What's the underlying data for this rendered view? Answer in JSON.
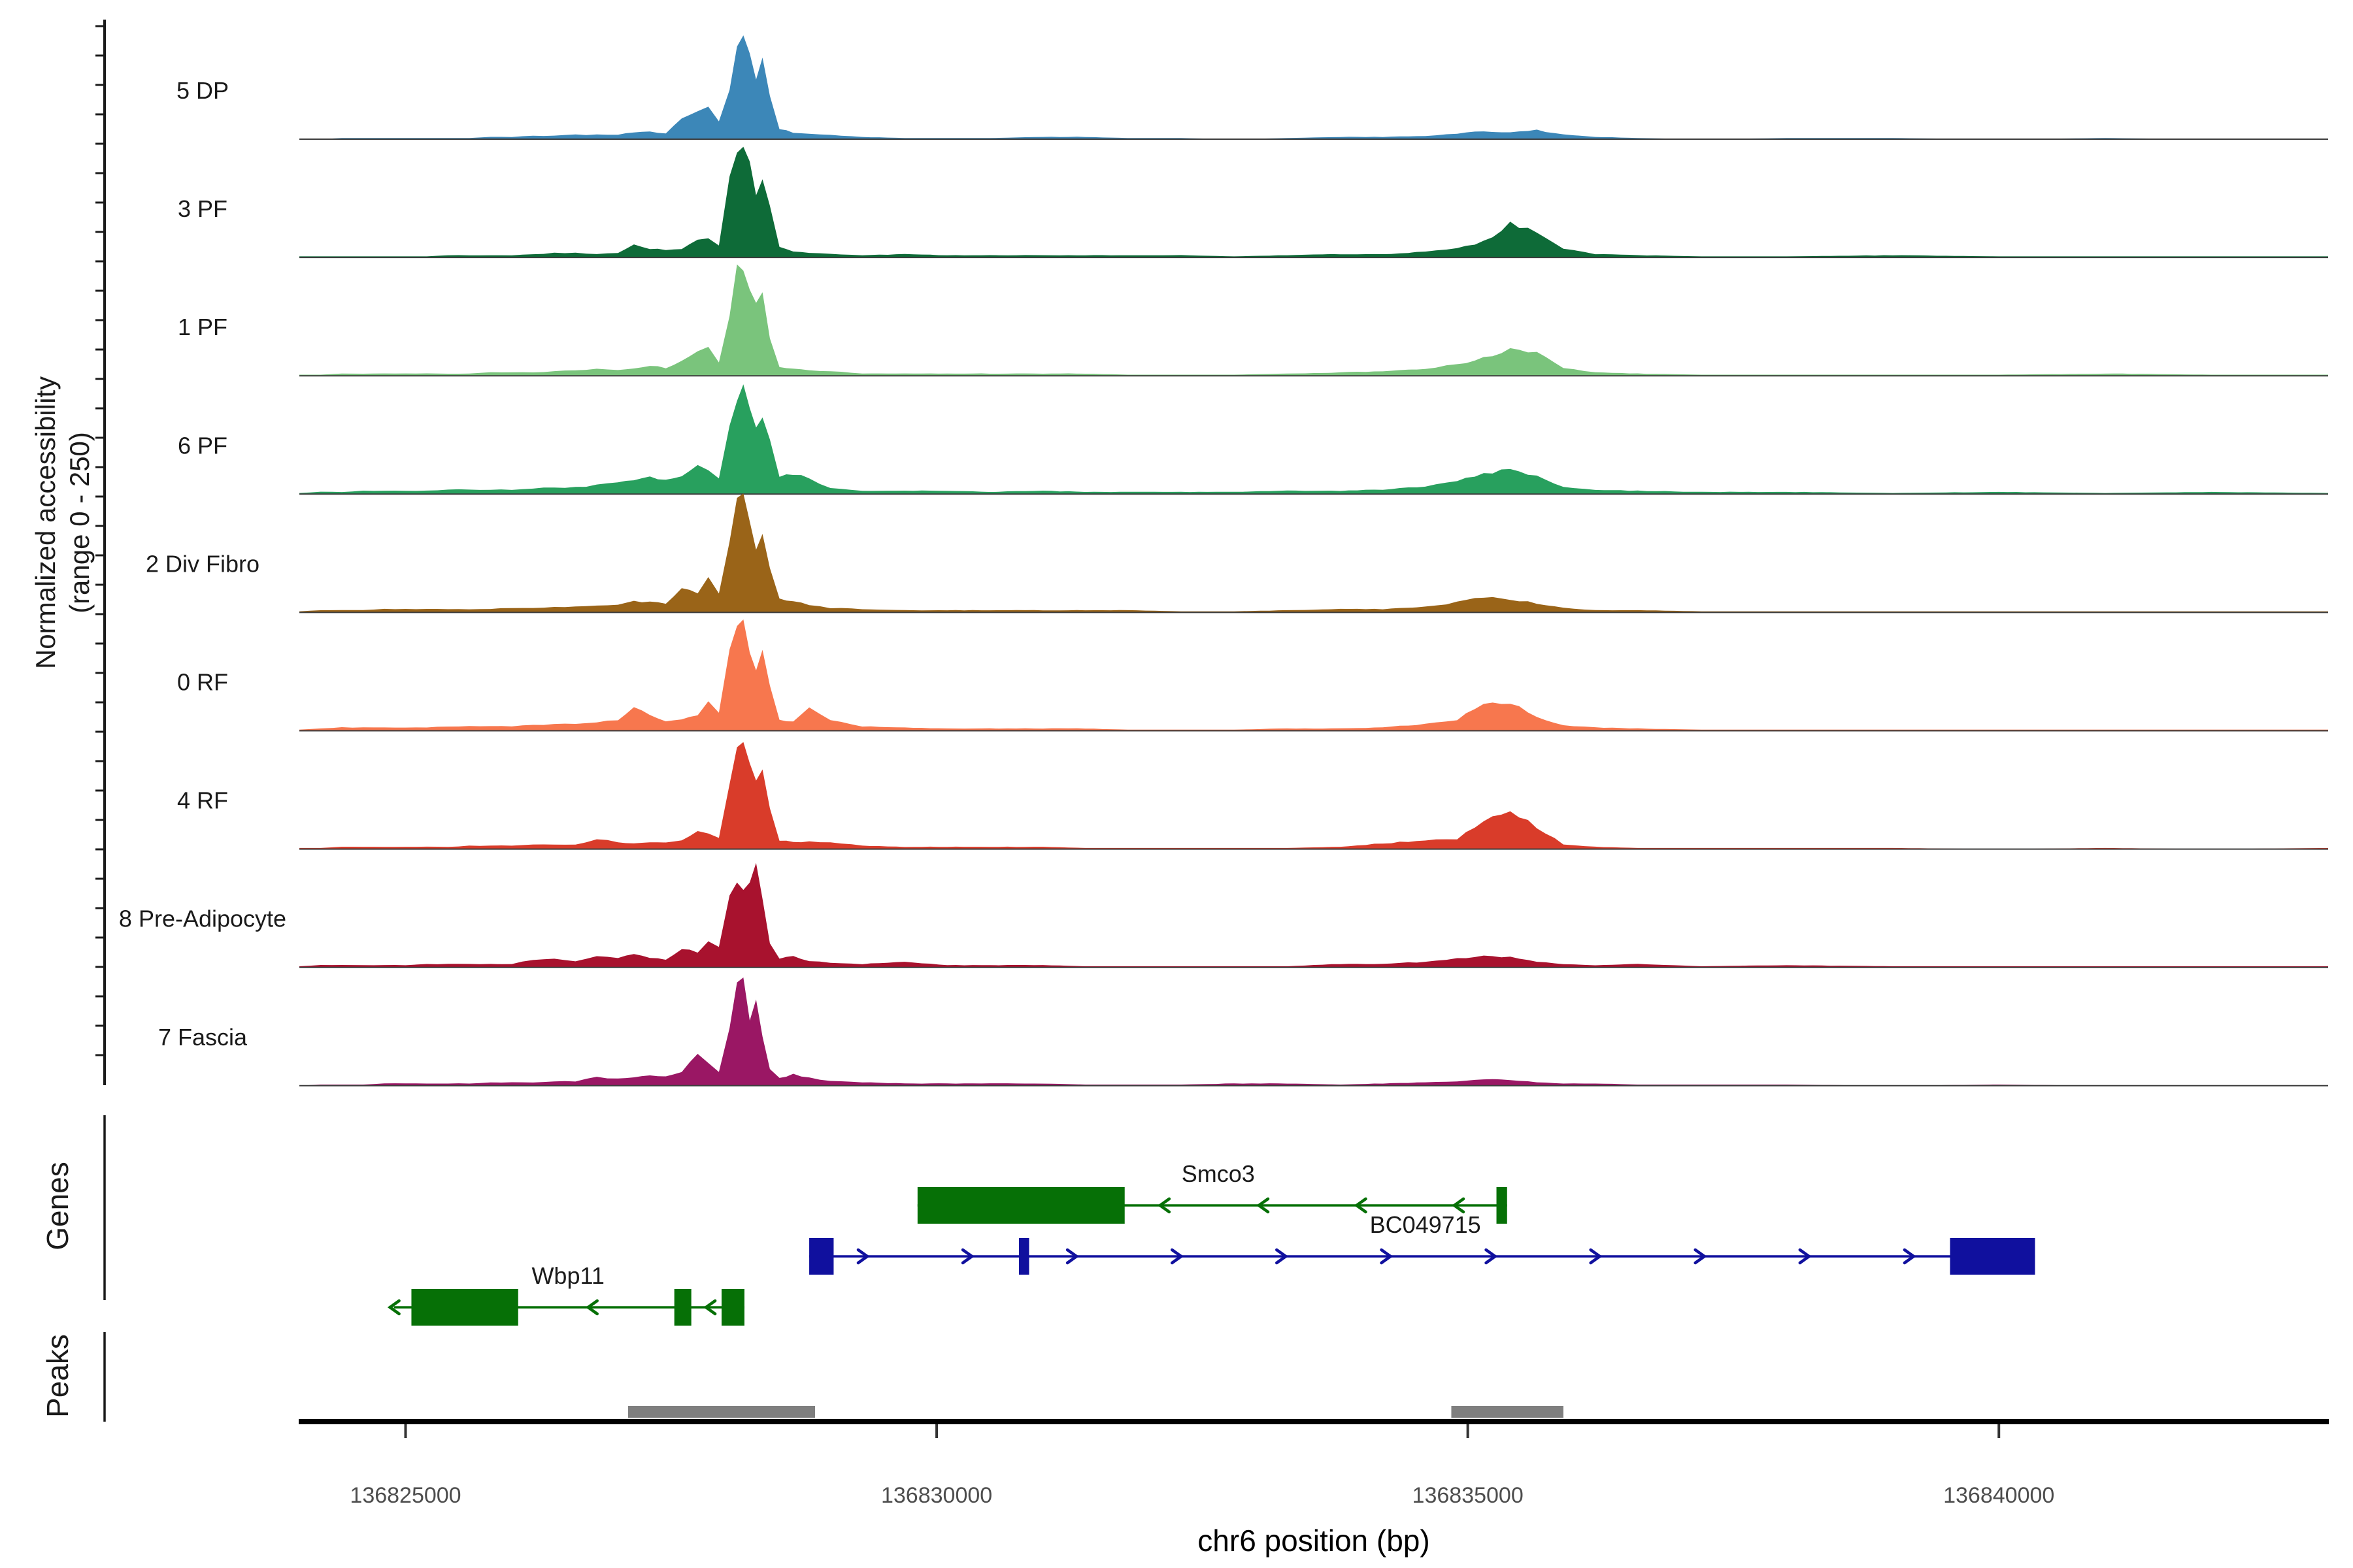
{
  "figure": {
    "y_axis_label_line1": "Normalized accessibility",
    "y_axis_label_line2": "(range 0 - 250)",
    "genes_section_label": "Genes",
    "peaks_section_label": "Peaks",
    "x_axis_title": "chr6 position (bp)"
  },
  "chart_data": {
    "type": "area",
    "title": "",
    "xlabel": "chr6 position (bp)",
    "ylabel": "Normalized accessibility (range 0 - 250)",
    "chromosome": "chr6",
    "x_domain_bp": [
      136824000,
      136843100
    ],
    "y_range_per_track": [
      0,
      250
    ],
    "grid_on": false,
    "x_ticks": [
      {
        "bp": 136825000,
        "label": "136825000"
      },
      {
        "bp": 136830000,
        "label": "136830000"
      },
      {
        "bp": 136835000,
        "label": "136835000"
      },
      {
        "bp": 136840000,
        "label": "136840000"
      }
    ],
    "x_offsets_bp": [
      0,
      200,
      400,
      600,
      800,
      1000,
      1200,
      1400,
      1600,
      1800,
      2000,
      2200,
      2400,
      2600,
      2800,
      3000,
      3150,
      3300,
      3450,
      3600,
      3750,
      3850,
      3950,
      4050,
      4120,
      4180,
      4240,
      4300,
      4360,
      4430,
      4520,
      4650,
      4800,
      5000,
      5300,
      5700,
      6100,
      6500,
      7000,
      7400,
      7800,
      8300,
      8800,
      9300,
      9800,
      10200,
      10600,
      10900,
      11150,
      11400,
      11650,
      11900,
      12200,
      12600,
      13200,
      14000,
      15000,
      16000,
      17000,
      18000,
      19100
    ],
    "tracks": [
      {
        "label": "5 DP",
        "color": "#3C87B8",
        "values_pct": [
          0,
          0,
          1,
          1,
          1,
          1,
          1,
          1,
          1,
          2,
          2,
          3,
          3,
          4,
          4,
          4,
          6,
          7,
          5,
          18,
          24,
          27,
          15,
          45,
          88,
          100,
          82,
          55,
          72,
          40,
          9,
          6,
          5,
          4,
          2,
          1,
          1,
          1,
          2,
          2,
          1,
          1,
          0,
          1,
          2,
          2,
          3,
          5,
          7,
          6,
          8,
          4,
          2,
          1,
          0,
          1,
          1,
          0,
          1,
          0,
          0
        ]
      },
      {
        "label": "3 PF",
        "color": "#0E6B38",
        "values_pct": [
          1,
          1,
          1,
          1,
          1,
          1,
          1,
          2,
          2,
          2,
          2,
          3,
          4,
          4,
          3,
          4,
          12,
          8,
          7,
          8,
          16,
          18,
          10,
          70,
          95,
          100,
          85,
          58,
          72,
          45,
          10,
          5,
          4,
          3,
          2,
          3,
          2,
          2,
          2,
          2,
          2,
          2,
          1,
          2,
          3,
          3,
          5,
          8,
          14,
          30,
          22,
          8,
          3,
          2,
          1,
          1,
          2,
          1,
          1,
          1,
          1
        ]
      },
      {
        "label": "1 PF",
        "color": "#7AC47C",
        "values_pct": [
          1,
          1,
          2,
          2,
          2,
          2,
          2,
          2,
          2,
          3,
          3,
          3,
          4,
          5,
          6,
          5,
          7,
          9,
          7,
          13,
          21,
          25,
          12,
          55,
          92,
          100,
          82,
          62,
          70,
          35,
          8,
          6,
          5,
          4,
          2,
          2,
          2,
          2,
          2,
          2,
          1,
          1,
          1,
          2,
          3,
          4,
          6,
          10,
          16,
          24,
          20,
          7,
          3,
          2,
          1,
          1,
          1,
          1,
          2,
          1,
          1
        ]
      },
      {
        "label": "6 PF",
        "color": "#28A05E",
        "values_pct": [
          1,
          2,
          2,
          3,
          3,
          3,
          3,
          4,
          4,
          4,
          4,
          5,
          6,
          6,
          8,
          10,
          13,
          16,
          12,
          15,
          26,
          22,
          14,
          60,
          90,
          100,
          78,
          55,
          70,
          48,
          15,
          18,
          14,
          5,
          3,
          3,
          3,
          2,
          3,
          2,
          2,
          2,
          2,
          3,
          3,
          4,
          7,
          12,
          18,
          22,
          16,
          6,
          4,
          3,
          2,
          2,
          1,
          2,
          1,
          2,
          1
        ]
      },
      {
        "label": "2 Div Fibro",
        "color": "#9A6418",
        "values_pct": [
          1,
          2,
          2,
          2,
          3,
          3,
          3,
          3,
          3,
          3,
          4,
          4,
          5,
          5,
          6,
          7,
          10,
          9,
          8,
          22,
          18,
          30,
          18,
          65,
          96,
          100,
          80,
          58,
          68,
          42,
          12,
          10,
          7,
          4,
          3,
          2,
          2,
          2,
          2,
          2,
          2,
          1,
          1,
          2,
          3,
          3,
          5,
          9,
          14,
          12,
          8,
          4,
          2,
          2,
          1,
          1,
          1,
          1,
          1,
          1,
          1
        ]
      },
      {
        "label": "0 RF",
        "color": "#F7774E",
        "values_pct": [
          1,
          2,
          3,
          3,
          3,
          3,
          3,
          4,
          4,
          4,
          4,
          5,
          6,
          6,
          7,
          10,
          22,
          14,
          8,
          10,
          14,
          28,
          16,
          70,
          98,
          100,
          75,
          55,
          68,
          40,
          10,
          8,
          20,
          10,
          4,
          3,
          2,
          2,
          2,
          2,
          1,
          1,
          1,
          2,
          2,
          3,
          6,
          10,
          24,
          26,
          12,
          5,
          3,
          2,
          1,
          1,
          1,
          1,
          1,
          1,
          1
        ]
      },
      {
        "label": "4 RF",
        "color": "#D93C2A",
        "values_pct": [
          1,
          1,
          2,
          2,
          2,
          2,
          2,
          2,
          3,
          3,
          3,
          4,
          4,
          4,
          9,
          6,
          5,
          6,
          6,
          8,
          16,
          14,
          10,
          55,
          92,
          100,
          82,
          58,
          70,
          35,
          8,
          6,
          7,
          6,
          3,
          2,
          2,
          2,
          2,
          1,
          1,
          1,
          1,
          1,
          2,
          5,
          8,
          9,
          26,
          34,
          20,
          4,
          2,
          1,
          1,
          1,
          1,
          0,
          1,
          0,
          1
        ]
      },
      {
        "label": "8 Pre-Adipocyte",
        "color": "#A8122E",
        "values_pct": [
          1,
          2,
          2,
          2,
          2,
          2,
          3,
          3,
          3,
          3,
          3,
          7,
          8,
          5,
          10,
          8,
          12,
          9,
          7,
          16,
          14,
          25,
          18,
          62,
          72,
          68,
          75,
          100,
          65,
          20,
          8,
          10,
          6,
          4,
          3,
          5,
          2,
          2,
          2,
          1,
          1,
          1,
          1,
          1,
          3,
          3,
          5,
          8,
          10,
          9,
          5,
          3,
          2,
          3,
          1,
          2,
          1,
          1,
          1,
          1,
          1
        ]
      },
      {
        "label": "7 Fascia",
        "color": "#9A1764",
        "values_pct": [
          0,
          1,
          1,
          1,
          2,
          2,
          2,
          2,
          2,
          3,
          3,
          3,
          4,
          4,
          8,
          6,
          8,
          10,
          8,
          12,
          28,
          20,
          13,
          55,
          92,
          100,
          60,
          72,
          45,
          14,
          7,
          10,
          7,
          4,
          3,
          2,
          2,
          2,
          2,
          1,
          1,
          1,
          2,
          2,
          1,
          2,
          3,
          4,
          6,
          5,
          3,
          2,
          2,
          1,
          1,
          1,
          0,
          1,
          0,
          0,
          0
        ]
      }
    ],
    "genes": [
      {
        "name": "Smco3",
        "color": "#067006",
        "strand": "-",
        "row": 0,
        "start_bp": 136829820,
        "end_bp": 136835370,
        "exons_bp": [
          [
            136829820,
            136831770
          ],
          [
            136835270,
            136835370
          ]
        ],
        "arrows_bp": [
          136832140,
          136833070,
          136833990,
          136834910
        ],
        "label_anchor_bp": 136832650
      },
      {
        "name": "BC049715",
        "color": "#10109E",
        "strand": "+",
        "row": 1,
        "start_bp": 136828800,
        "end_bp": 136840340,
        "exons_bp": [
          [
            136828800,
            136829030
          ],
          [
            136830775,
            136830870
          ],
          [
            136839540,
            136840340
          ]
        ],
        "arrows_bp": [
          136829310,
          136830295,
          136831280,
          136832265,
          136833250,
          136834236,
          136835221,
          136836206,
          136837191,
          136838176,
          136839161
        ],
        "label_anchor_bp": 136834600
      },
      {
        "name": "Wbp11",
        "color": "#067006",
        "strand": "-",
        "row": 2,
        "start_bp": 136824890,
        "end_bp": 136828190,
        "exons_bp": [
          [
            136825055,
            136826060
          ],
          [
            136827530,
            136827690
          ],
          [
            136827975,
            136828190
          ]
        ],
        "arrows_bp": [
          136824890,
          136826755,
          136827865
        ],
        "label_anchor_bp": 136826530
      },
      {
        "name": "",
        "color": "",
        "strand": "",
        "row": -1,
        "start_bp": 0,
        "end_bp": 0,
        "exons_bp": [],
        "arrows_bp": [],
        "label_anchor_bp": 0
      }
    ],
    "peaks_bp": [
      [
        136827095,
        136828855
      ],
      [
        136834845,
        136835900
      ]
    ],
    "peak_color": "#7F7F7F",
    "legend_position": "none"
  }
}
